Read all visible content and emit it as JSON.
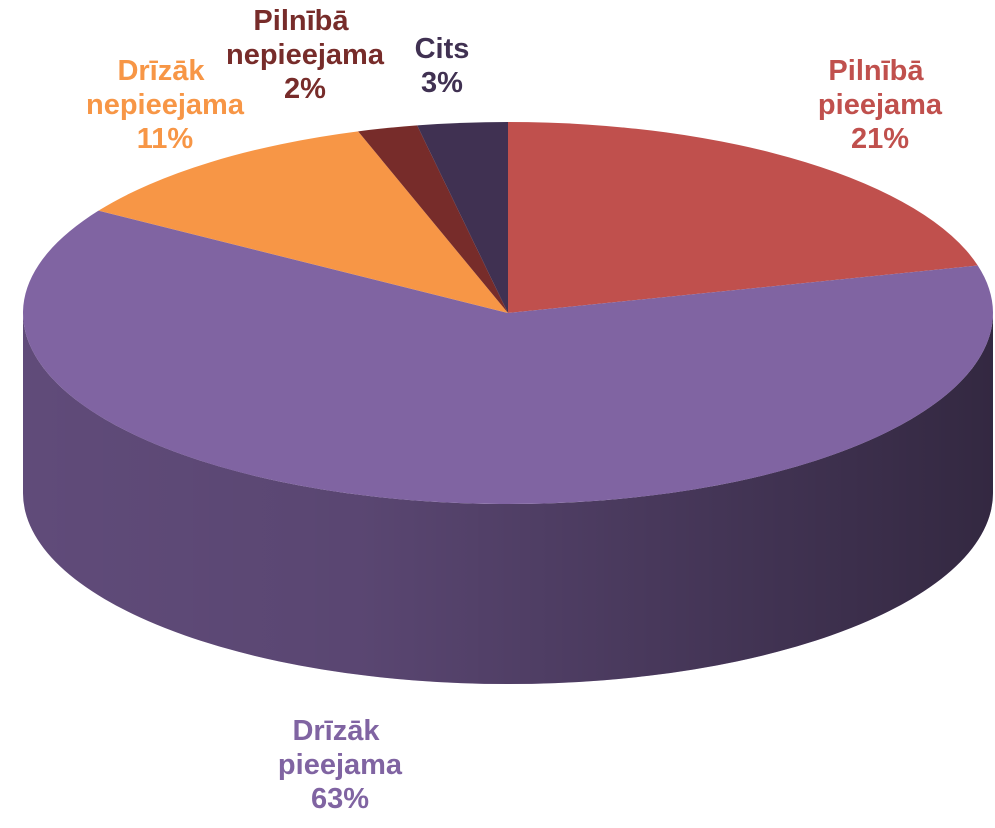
{
  "chart_data": {
    "type": "pie",
    "categories": [
      "Pilnībā pieejama",
      "Drīzāk pieejama",
      "Drīzāk nepieejama",
      "Pilnībā nepieejama",
      "Cits"
    ],
    "values": [
      21,
      63,
      11,
      2,
      3
    ],
    "value_labels": [
      "21%",
      "63%",
      "11%",
      "2%",
      "3%"
    ],
    "colors": [
      "#c0504d",
      "#8064a2",
      "#f79646",
      "#772c2a",
      "#403152"
    ]
  }
}
